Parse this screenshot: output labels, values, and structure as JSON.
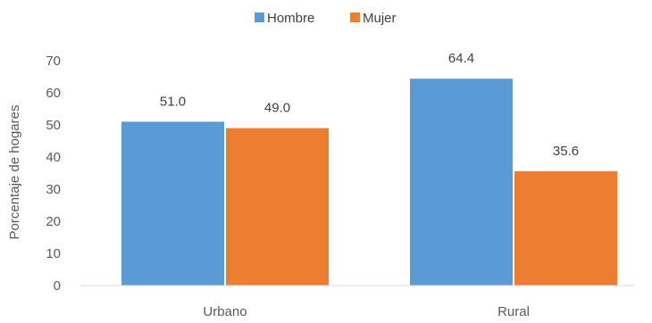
{
  "chart_data": {
    "type": "bar",
    "categories": [
      "Urbano",
      "Rural"
    ],
    "series": [
      {
        "name": "Hombre",
        "values": [
          51.0,
          64.4
        ],
        "labels": [
          "51.0",
          "64.4"
        ],
        "color": "#5b9bd5"
      },
      {
        "name": "Mujer",
        "values": [
          49.0,
          35.6
        ],
        "labels": [
          "49.0",
          "35.6"
        ],
        "color": "#ed7d31"
      }
    ],
    "ylabel": "Porcentaje de hogares",
    "xlabel": "",
    "ylim": [
      0,
      70
    ],
    "yticks": [
      "0",
      "10",
      "20",
      "30",
      "40",
      "50",
      "60",
      "70"
    ],
    "grid": false,
    "legend_position": "top"
  }
}
